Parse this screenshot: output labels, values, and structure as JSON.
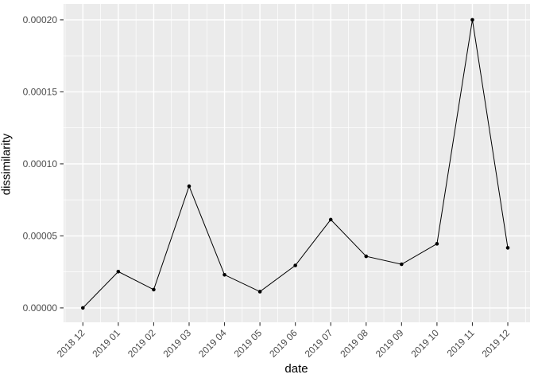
{
  "chart_data": {
    "type": "line",
    "title": "",
    "xlabel": "date",
    "ylabel": "dissimilarity",
    "categories": [
      "2018 12",
      "2019 01",
      "2019 02",
      "2019 03",
      "2019 04",
      "2019 05",
      "2019 06",
      "2019 07",
      "2019 08",
      "2019 09",
      "2019 10",
      "2019 11",
      "2019 12"
    ],
    "values": [
      0.0,
      2.52e-05,
      1.27e-05,
      8.45e-05,
      2.3e-05,
      1.13e-05,
      2.95e-05,
      6.13e-05,
      3.58e-05,
      3.03e-05,
      4.45e-05,
      0.0002,
      4.17e-05
    ],
    "y_ticks": [
      0.0,
      5e-05,
      0.0001,
      0.00015,
      0.0002
    ],
    "y_tick_labels": [
      "0.00000",
      "0.00005",
      "0.00010",
      "0.00015",
      "0.00020"
    ],
    "y_minor_ticks": [
      2.5e-05,
      7.5e-05,
      0.000125,
      0.000175
    ],
    "ylim": [
      -1e-05,
      0.000211
    ],
    "grid": true,
    "legend": "none",
    "x_tick_angle": 45
  },
  "theme": {
    "panel_bg": "#ebebeb",
    "grid_color": "#ffffff",
    "tick_mark_color": "#333333",
    "tick_label_color": "#4d4d4d",
    "axis_title_color": "#000000",
    "line_color": "#000000",
    "point_color": "#000000"
  }
}
